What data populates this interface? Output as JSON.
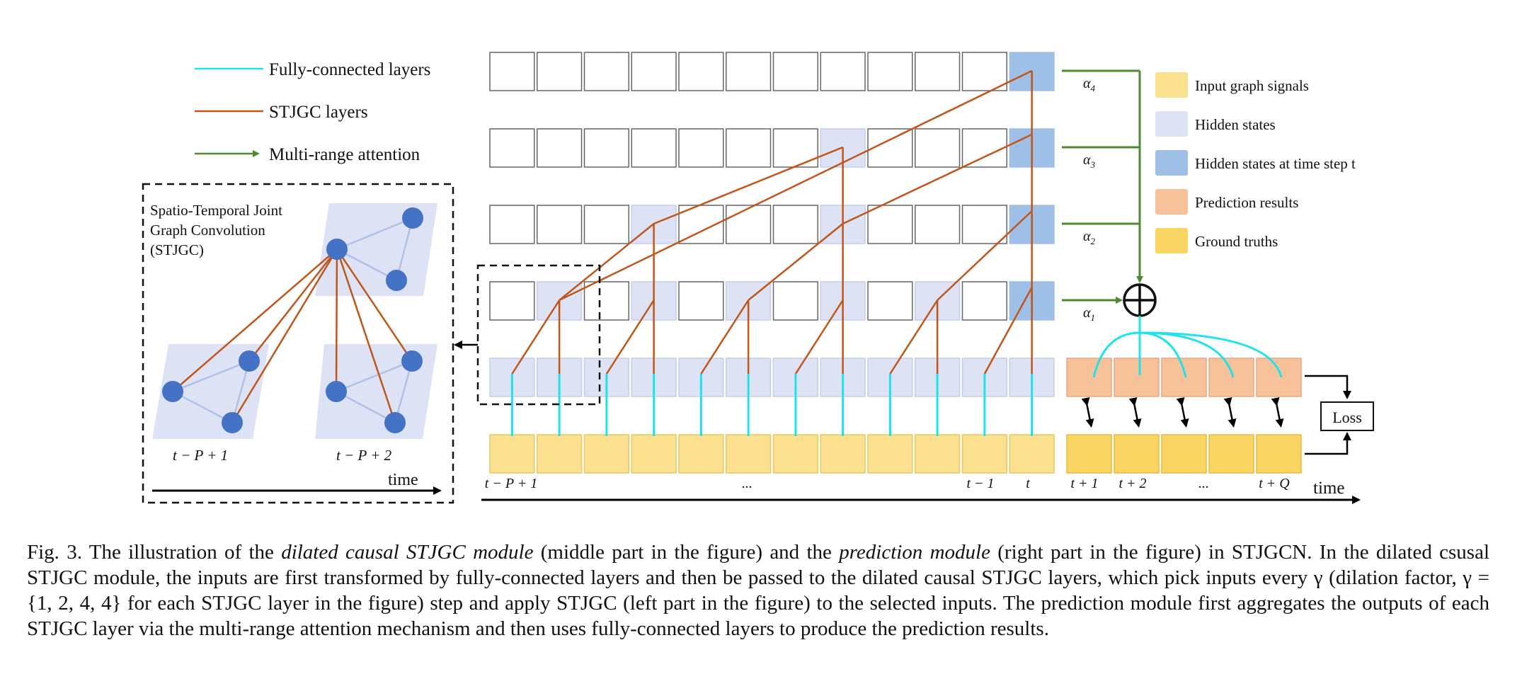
{
  "legend_lines": {
    "fc": "Fully-connected layers",
    "stjgc": "STJGC layers",
    "attention": "Multi-range attention"
  },
  "stjgc_box": {
    "title_line1": "Spatio-Temporal Joint",
    "title_line2": "Graph Convolution",
    "title_line3": "(STJGC)",
    "label_left": "t − P + 1",
    "label_right": "t − P + 2",
    "time": "time"
  },
  "axis_labels": {
    "first": "t − P + 1",
    "dots": "...",
    "t_minus_1": "t − 1",
    "t": "t",
    "t_plus_1": "t + 1",
    "t_plus_2": "t + 2",
    "dots2": "...",
    "t_plus_q": "t + Q",
    "time": "time"
  },
  "alphas": [
    "α",
    "α",
    "α",
    "α"
  ],
  "alpha_subs": [
    "4",
    "3",
    "2",
    "1"
  ],
  "legend_boxes": [
    {
      "label": "Input graph signals",
      "color": "#fbe08f"
    },
    {
      "label": "Hidden states",
      "color": "#dde3f4"
    },
    {
      "label": "Hidden states at time step t",
      "color": "#9fc0e6"
    },
    {
      "label": "Prediction results",
      "color": "#f7c19a"
    },
    {
      "label": "Ground truths",
      "color": "#fbd564"
    }
  ],
  "loss_label": "Loss",
  "colors": {
    "fc": "#1ee3ee",
    "stjgc": "#c0561a",
    "attention": "#4e8a34",
    "input": "#fbe08f",
    "hidden": "#dde3f4",
    "hidden_t": "#9fc0e6",
    "prediction": "#f7c19a",
    "ground_truth": "#fbd564",
    "node": "#4472c4"
  },
  "caption": {
    "p1": "Fig. 3.    The illustration of the ",
    "i1": "dilated causal STJGC module",
    "p2": " (middle part in the figure) and the ",
    "i2": "prediction module",
    "p3": " (right part in the figure) in STJGCN. In the dilated csusal STJGC module, the inputs are first transformed by fully-connected layers and then be passed to the dilated causal STJGC layers, which pick inputs every γ (dilation factor, γ = {1, 2, 4, 4} for each STJGC layer in the figure) step and apply STJGC (left part in the figure) to the selected inputs. The prediction module first aggregates the outputs of each STJGC layer via the multi-range attention mechanism and then uses fully-connected layers to produce the prediction results."
  }
}
